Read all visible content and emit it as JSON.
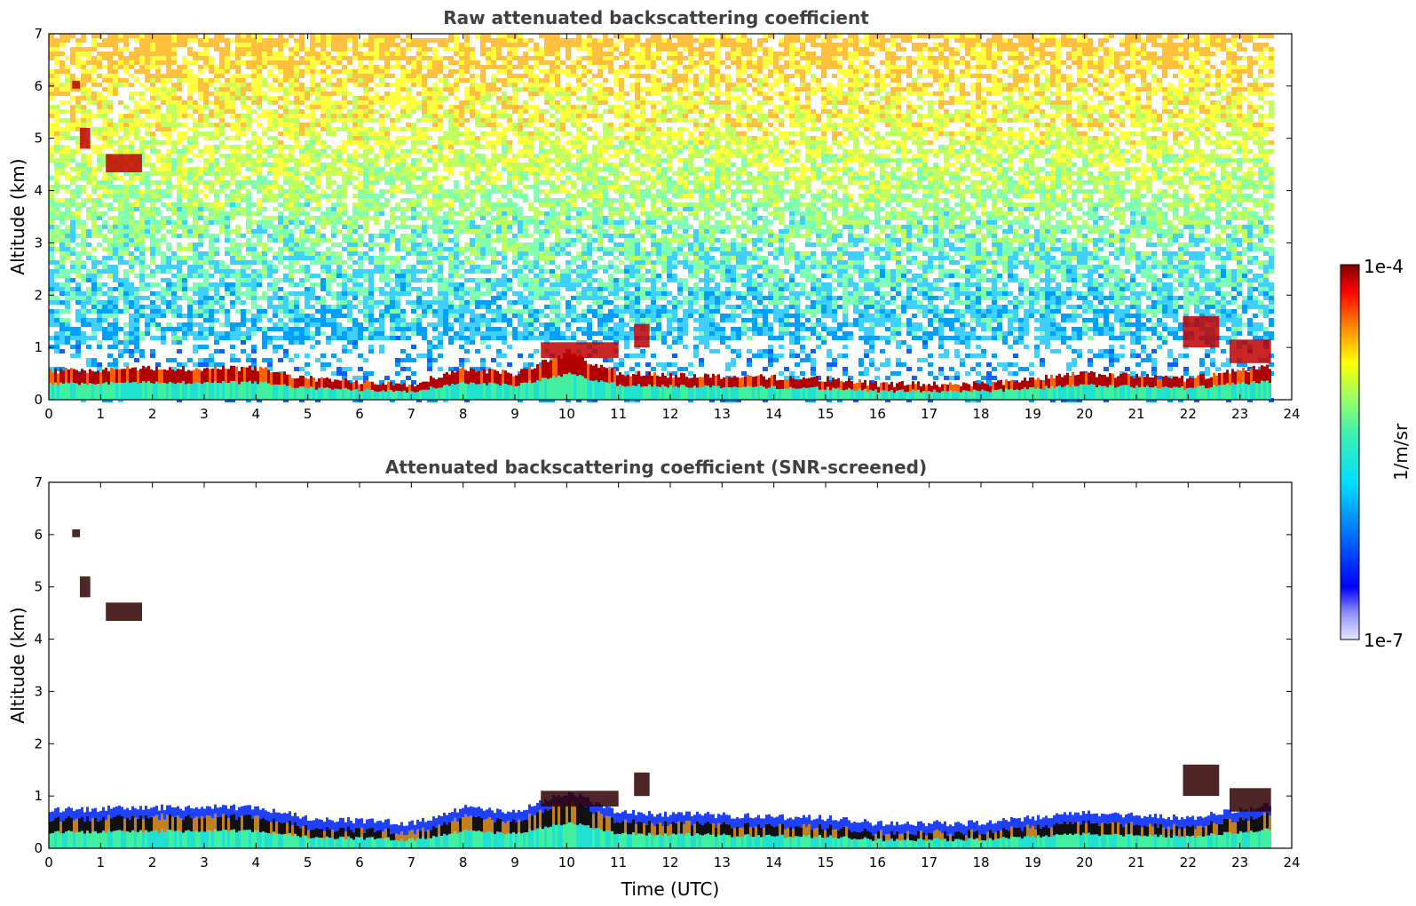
{
  "chart_data": [
    {
      "type": "heatmap",
      "title": "Raw attenuated backscattering coefficient",
      "xlabel": "",
      "ylabel": "Altitude (km)",
      "xlim": [
        0,
        24
      ],
      "ylim": [
        0,
        7
      ],
      "xticks": [
        "0",
        "1",
        "2",
        "3",
        "4",
        "5",
        "6",
        "7",
        "8",
        "9",
        "10",
        "11",
        "12",
        "13",
        "14",
        "15",
        "16",
        "17",
        "18",
        "19",
        "20",
        "21",
        "22",
        "23",
        "24"
      ],
      "yticks": [
        "0",
        "1",
        "2",
        "3",
        "4",
        "5",
        "6",
        "7"
      ],
      "data_end_time": 23.6,
      "boundary_layer_top_km": [
        {
          "t": 0,
          "z": 0.55
        },
        {
          "t": 2,
          "z": 0.6
        },
        {
          "t": 4,
          "z": 0.6
        },
        {
          "t": 5,
          "z": 0.4
        },
        {
          "t": 7,
          "z": 0.3
        },
        {
          "t": 8,
          "z": 0.6
        },
        {
          "t": 9,
          "z": 0.5
        },
        {
          "t": 10,
          "z": 0.9
        },
        {
          "t": 11,
          "z": 0.5
        },
        {
          "t": 13,
          "z": 0.45
        },
        {
          "t": 15,
          "z": 0.4
        },
        {
          "t": 16,
          "z": 0.3
        },
        {
          "t": 18,
          "z": 0.3
        },
        {
          "t": 20,
          "z": 0.5
        },
        {
          "t": 22,
          "z": 0.4
        },
        {
          "t": 23.6,
          "z": 0.65
        }
      ],
      "cloud_features": [
        {
          "t0": 0.45,
          "t1": 0.6,
          "z0": 5.95,
          "z1": 6.1
        },
        {
          "t0": 0.6,
          "t1": 0.8,
          "z0": 4.8,
          "z1": 5.2
        },
        {
          "t0": 1.1,
          "t1": 1.8,
          "z0": 4.35,
          "z1": 4.7
        },
        {
          "t0": 9.5,
          "t1": 11.0,
          "z0": 0.8,
          "z1": 1.1
        },
        {
          "t0": 11.3,
          "t1": 11.6,
          "z0": 1.0,
          "z1": 1.45
        },
        {
          "t0": 21.9,
          "t1": 22.6,
          "z0": 1.0,
          "z1": 1.6
        },
        {
          "t0": 22.8,
          "t1": 23.6,
          "z0": 0.7,
          "z1": 1.15
        }
      ]
    },
    {
      "type": "heatmap",
      "title": "Attenuated backscattering coefficient (SNR-screened)",
      "xlabel": "Time (UTC)",
      "ylabel": "Altitude (km)",
      "xlim": [
        0,
        24
      ],
      "ylim": [
        0,
        7
      ],
      "xticks": [
        "0",
        "1",
        "2",
        "3",
        "4",
        "5",
        "6",
        "7",
        "8",
        "9",
        "10",
        "11",
        "12",
        "13",
        "14",
        "15",
        "16",
        "17",
        "18",
        "19",
        "20",
        "21",
        "22",
        "23",
        "24"
      ],
      "yticks": [
        "0",
        "1",
        "2",
        "3",
        "4",
        "5",
        "6",
        "7"
      ],
      "data_end_time": 23.6
    }
  ],
  "colorbar": {
    "min_label": "1e-7",
    "max_label": "1e-4",
    "unit_label": "1/m/sr",
    "scale": "log",
    "colormap": "jet"
  }
}
